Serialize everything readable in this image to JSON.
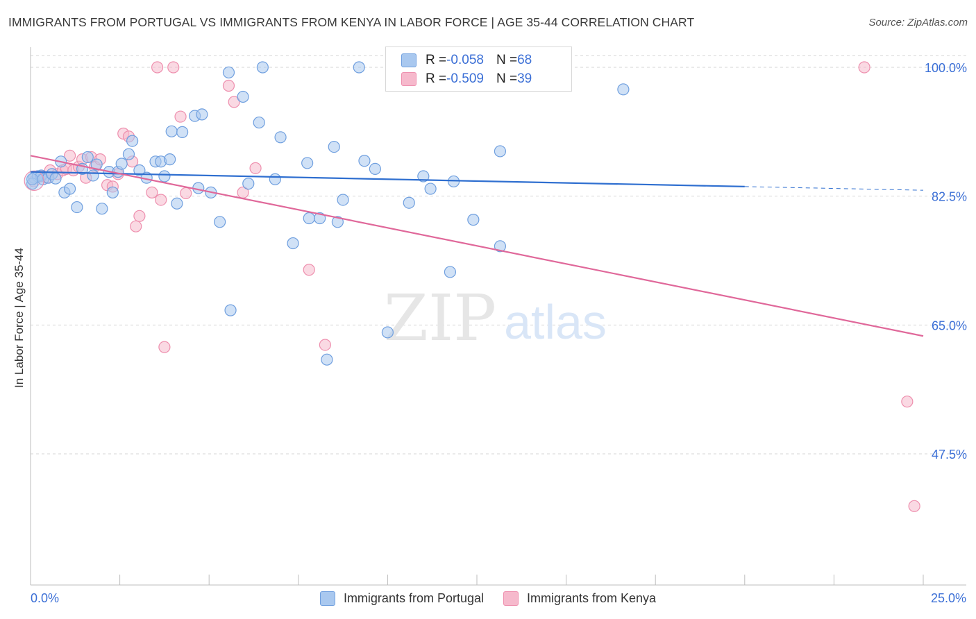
{
  "title": "IMMIGRANTS FROM PORTUGAL VS IMMIGRANTS FROM KENYA IN LABOR FORCE | AGE 35-44 CORRELATION CHART",
  "source": "Source: ZipAtlas.com",
  "watermark": {
    "zip": "ZIP",
    "atlas": "atlas"
  },
  "legend_top": {
    "rows": [
      {
        "r_label": "R = ",
        "r_value": "-0.058",
        "n_label": "N = ",
        "n_value": "68"
      },
      {
        "r_label": "R = ",
        "r_value": "-0.509",
        "n_label": "N = ",
        "n_value": "39"
      }
    ]
  },
  "legend_bottom": [
    "Immigrants from Portugal",
    "Immigrants from Kenya"
  ],
  "colors": {
    "portugal_fill": "#a9c8ef",
    "portugal_stroke": "#6f9fdf",
    "portugal_line": "#2f6fd0",
    "kenya_fill": "#f6b9cc",
    "kenya_stroke": "#ee8fae",
    "kenya_line": "#e0689a",
    "tick_label": "#3b6fd6",
    "grid": "#d6d6d6"
  },
  "chart_data": {
    "type": "scatter",
    "title": "IMMIGRANTS FROM PORTUGAL VS IMMIGRANTS FROM KENYA IN LABOR FORCE | AGE 35-44 CORRELATION CHART",
    "xlabel": "",
    "ylabel": "In Labor Force | Age 35-44",
    "xlim": [
      0,
      25
    ],
    "ylim": [
      33,
      102
    ],
    "x_tick_labels": [
      "0.0%",
      "25.0%"
    ],
    "y_ticks": [
      47.5,
      65.0,
      82.5,
      100.0
    ],
    "y_tick_labels": [
      "47.5%",
      "65.0%",
      "82.5%",
      "100.0%"
    ],
    "grid": true,
    "legend_position": "bottom",
    "series": [
      {
        "name": "Immigrants from Portugal",
        "R": -0.058,
        "N": 68,
        "trend": {
          "x0": 0.0,
          "y0": 85.8,
          "x1": 20.0,
          "y1": 83.8,
          "dashed_to_x": 25.0,
          "dashed_to_y": 83.3
        },
        "points": [
          [
            0.1,
            85.0
          ],
          [
            0.2,
            85.2
          ],
          [
            0.3,
            85.3
          ],
          [
            0.35,
            84.8
          ],
          [
            0.5,
            85.0
          ],
          [
            0.6,
            85.5
          ],
          [
            0.7,
            84.9
          ],
          [
            0.85,
            87.2
          ],
          [
            0.95,
            83.0
          ],
          [
            1.1,
            83.5
          ],
          [
            1.3,
            81.0
          ],
          [
            1.45,
            86.2
          ],
          [
            1.6,
            87.8
          ],
          [
            1.75,
            85.3
          ],
          [
            1.85,
            86.8
          ],
          [
            2.0,
            80.8
          ],
          [
            2.2,
            85.8
          ],
          [
            2.3,
            83.0
          ],
          [
            2.45,
            85.8
          ],
          [
            2.55,
            86.9
          ],
          [
            2.75,
            88.2
          ],
          [
            2.85,
            90.0
          ],
          [
            3.05,
            86.0
          ],
          [
            3.25,
            85.0
          ],
          [
            3.5,
            87.2
          ],
          [
            3.65,
            87.2
          ],
          [
            3.75,
            85.2
          ],
          [
            3.9,
            87.5
          ],
          [
            3.95,
            91.3
          ],
          [
            4.1,
            81.5
          ],
          [
            4.25,
            91.2
          ],
          [
            4.6,
            93.4
          ],
          [
            4.7,
            83.6
          ],
          [
            4.8,
            93.6
          ],
          [
            5.05,
            83.0
          ],
          [
            5.3,
            79.0
          ],
          [
            5.55,
            99.3
          ],
          [
            5.6,
            67.0
          ],
          [
            5.95,
            96.0
          ],
          [
            6.1,
            84.2
          ],
          [
            6.4,
            92.5
          ],
          [
            6.5,
            100.0
          ],
          [
            6.85,
            84.8
          ],
          [
            7.0,
            90.5
          ],
          [
            7.35,
            76.1
          ],
          [
            7.75,
            87.0
          ],
          [
            7.8,
            79.5
          ],
          [
            8.1,
            79.5
          ],
          [
            8.3,
            60.3
          ],
          [
            8.5,
            89.2
          ],
          [
            8.6,
            79.0
          ],
          [
            8.75,
            82.0
          ],
          [
            9.2,
            100.0
          ],
          [
            9.35,
            87.3
          ],
          [
            9.65,
            86.2
          ],
          [
            10.0,
            64.0
          ],
          [
            10.6,
            81.6
          ],
          [
            11.0,
            85.2
          ],
          [
            11.2,
            83.5
          ],
          [
            11.75,
            72.2
          ],
          [
            11.85,
            84.5
          ],
          [
            12.4,
            79.3
          ],
          [
            13.15,
            75.7
          ],
          [
            13.15,
            88.6
          ],
          [
            14.25,
            100.0
          ],
          [
            16.6,
            97.0
          ],
          [
            0.05,
            84.2
          ],
          [
            0.05,
            84.8
          ]
        ]
      },
      {
        "name": "Immigrants from Kenya",
        "R": -0.509,
        "N": 39,
        "trend": {
          "x0": 0.0,
          "y0": 88.0,
          "x1": 25.0,
          "y1": 63.5
        },
        "points": [
          [
            0.1,
            84.5
          ],
          [
            0.3,
            85.2
          ],
          [
            0.45,
            85.0
          ],
          [
            0.55,
            86.0
          ],
          [
            0.75,
            85.5
          ],
          [
            0.9,
            86.0
          ],
          [
            1.0,
            86.2
          ],
          [
            1.1,
            88.0
          ],
          [
            1.2,
            86.0
          ],
          [
            1.35,
            86.5
          ],
          [
            1.45,
            87.5
          ],
          [
            1.55,
            85.0
          ],
          [
            1.7,
            87.8
          ],
          [
            1.8,
            86.5
          ],
          [
            1.95,
            87.5
          ],
          [
            2.15,
            84.0
          ],
          [
            2.3,
            83.8
          ],
          [
            2.45,
            85.5
          ],
          [
            2.6,
            91.0
          ],
          [
            2.75,
            90.6
          ],
          [
            2.85,
            87.2
          ],
          [
            2.95,
            78.4
          ],
          [
            3.05,
            79.8
          ],
          [
            3.4,
            83.0
          ],
          [
            3.55,
            100.0
          ],
          [
            3.65,
            82.0
          ],
          [
            3.75,
            62.0
          ],
          [
            4.0,
            100.0
          ],
          [
            4.2,
            93.3
          ],
          [
            4.35,
            82.9
          ],
          [
            5.55,
            97.5
          ],
          [
            5.7,
            95.3
          ],
          [
            5.95,
            83.0
          ],
          [
            6.3,
            86.3
          ],
          [
            7.8,
            72.5
          ],
          [
            8.25,
            62.3
          ],
          [
            23.35,
            100.0
          ],
          [
            24.55,
            54.6
          ],
          [
            24.75,
            40.4
          ]
        ]
      }
    ]
  }
}
